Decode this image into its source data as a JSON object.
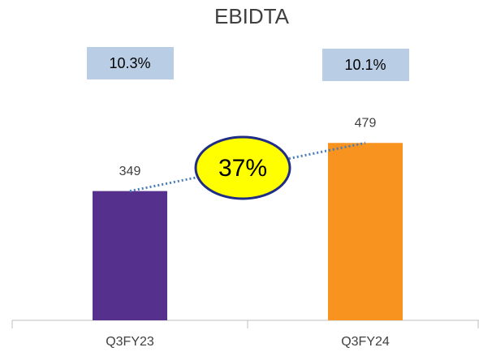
{
  "chart_data": {
    "type": "bar",
    "title": "EBIDTA",
    "categories": [
      "Q3FY23",
      "Q3FY24"
    ],
    "values": [
      349,
      479
    ],
    "colors": [
      "#55308d",
      "#f7931e"
    ],
    "ylim": [
      0,
      600
    ],
    "margin_labels": [
      "10.3%",
      "10.1%"
    ],
    "growth_label": "37%"
  }
}
